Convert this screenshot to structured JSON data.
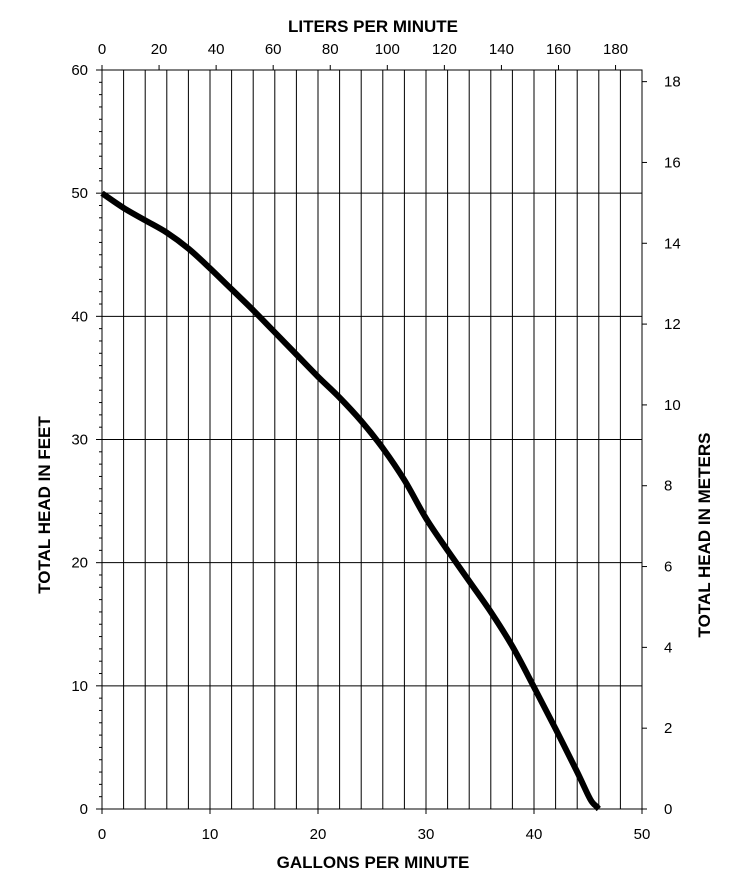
{
  "chart_data": {
    "type": "line",
    "title": "",
    "xlabel": "GALLONS PER MINUTE",
    "ylabel": "TOTAL HEAD IN FEET",
    "x2label": "LITERS PER MINUTE",
    "y2label": "TOTAL HEAD IN METERS",
    "xlim": [
      0,
      50
    ],
    "ylim": [
      0,
      60
    ],
    "x2lim": [
      0,
      189.27
    ],
    "y2lim": [
      0,
      18.288
    ],
    "x_ticks": [
      "0",
      "10",
      "20",
      "30",
      "40",
      "50"
    ],
    "y_ticks": [
      "0",
      "10",
      "20",
      "30",
      "40",
      "50",
      "60"
    ],
    "x2_ticks": [
      "0",
      "20",
      "40",
      "60",
      "80",
      "100",
      "120",
      "140",
      "160",
      "180"
    ],
    "y2_ticks": [
      "0",
      "2",
      "4",
      "6",
      "8",
      "10",
      "12",
      "14",
      "16",
      "18"
    ],
    "grid": true,
    "legend": "none",
    "line_color": "#000000",
    "grid_color": "#000000",
    "series": [
      {
        "x": [
          0,
          2,
          4,
          6,
          8,
          10,
          12,
          14,
          16,
          18,
          20,
          22,
          24,
          26,
          28,
          30,
          32,
          34,
          36,
          38,
          40,
          42,
          44,
          45.2,
          45.8,
          46
        ],
        "y": [
          50,
          48.8,
          47.8,
          46.8,
          45.5,
          43.9,
          42.2,
          40.5,
          38.7,
          36.9,
          35.1,
          33.4,
          31.5,
          29.3,
          26.7,
          23.6,
          21.0,
          18.5,
          16.0,
          13.2,
          9.9,
          6.5,
          3.0,
          0.8,
          0.2,
          0
        ]
      }
    ]
  }
}
